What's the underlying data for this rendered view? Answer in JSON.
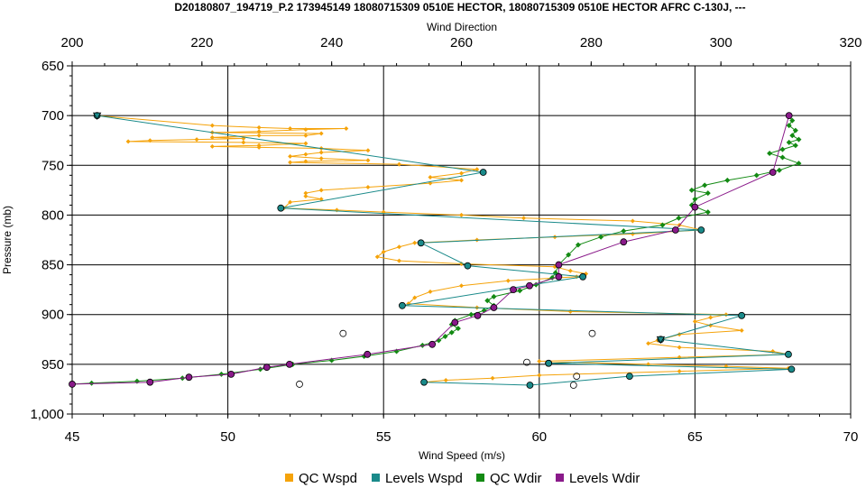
{
  "chart_data": {
    "type": "line",
    "title": "D20180807_194719_P.2 173945149 18080715309 0510E HECTOR, 18080715309 0510E HECTOR AFRC C-130J, ---",
    "xlabel_bottom": "Wind Speed (m/s)",
    "xlabel_top": "Wind Direction",
    "ylabel": "Pressure (mb)",
    "x_bottom_range": [
      45,
      70
    ],
    "x_top_range": [
      200,
      320
    ],
    "y_range": [
      650,
      1000
    ],
    "y_inverted": true,
    "x_bottom_ticks": [
      "45",
      "50",
      "55",
      "60",
      "65",
      "70"
    ],
    "x_top_ticks": [
      "200",
      "220",
      "240",
      "260",
      "280",
      "300",
      "320"
    ],
    "y_ticks": [
      "650",
      "700",
      "750",
      "800",
      "850",
      "900",
      "950",
      "1,000"
    ],
    "grid": true,
    "legend_position": "bottom",
    "colors": {
      "qc_wspd": "#f5a30a",
      "levels_wspd": "#1a8a8a",
      "qc_wdir": "#138a13",
      "levels_wdir": "#8a1a8a"
    },
    "series": [
      {
        "name": "QC Wspd",
        "axis": "speed",
        "points": [
          [
            45.8,
            700
          ],
          [
            49.5,
            710
          ],
          [
            51.0,
            712
          ],
          [
            52.0,
            713
          ],
          [
            53.8,
            713
          ],
          [
            52.5,
            714
          ],
          [
            51.0,
            716
          ],
          [
            49.5,
            717
          ],
          [
            53.0,
            718
          ],
          [
            52.5,
            720
          ],
          [
            51.0,
            720
          ],
          [
            49.5,
            722
          ],
          [
            50.5,
            723
          ],
          [
            49.0,
            724
          ],
          [
            47.5,
            725
          ],
          [
            46.8,
            726
          ],
          [
            50.5,
            727
          ],
          [
            52.5,
            728
          ],
          [
            51.0,
            730
          ],
          [
            49.5,
            731
          ],
          [
            51.0,
            732
          ],
          [
            53.0,
            733
          ],
          [
            54.5,
            735
          ],
          [
            53.0,
            737
          ],
          [
            52.5,
            739
          ],
          [
            52.0,
            741
          ],
          [
            53.0,
            743
          ],
          [
            54.5,
            745
          ],
          [
            52.5,
            746
          ],
          [
            52.0,
            747
          ],
          [
            55.5,
            749
          ],
          [
            58.0,
            754
          ],
          [
            57.5,
            758
          ],
          [
            56.5,
            762
          ],
          [
            57.5,
            765
          ],
          [
            56.5,
            768
          ],
          [
            54.5,
            772
          ],
          [
            53.0,
            775
          ],
          [
            52.5,
            778
          ],
          [
            52.5,
            781
          ],
          [
            53.0,
            784
          ],
          [
            52.0,
            787
          ],
          [
            51.8,
            793
          ],
          [
            53.5,
            795
          ],
          [
            55.0,
            797
          ],
          [
            57.5,
            800
          ],
          [
            59.5,
            803
          ],
          [
            63.0,
            806
          ],
          [
            64.5,
            810
          ],
          [
            65.2,
            815
          ],
          [
            63.0,
            819
          ],
          [
            60.5,
            822
          ],
          [
            58.0,
            825
          ],
          [
            56.0,
            828
          ],
          [
            55.5,
            832
          ],
          [
            55.0,
            837
          ],
          [
            54.8,
            842
          ],
          [
            55.5,
            846
          ],
          [
            57.5,
            849
          ],
          [
            60.5,
            852
          ],
          [
            61.0,
            856
          ],
          [
            61.5,
            859
          ],
          [
            61.2,
            862
          ],
          [
            59.0,
            866
          ],
          [
            57.5,
            871
          ],
          [
            56.5,
            877
          ],
          [
            56.0,
            883
          ],
          [
            55.8,
            889
          ],
          [
            58.0,
            893
          ],
          [
            61.0,
            897
          ],
          [
            66.0,
            900
          ],
          [
            65.5,
            903
          ],
          [
            65.0,
            907
          ],
          [
            65.5,
            911
          ],
          [
            66.5,
            916
          ],
          [
            64.5,
            920
          ],
          [
            63.8,
            926
          ],
          [
            63.5,
            929
          ],
          [
            64.5,
            933
          ],
          [
            67.5,
            937
          ],
          [
            68.0,
            940
          ],
          [
            64.5,
            943
          ],
          [
            60.0,
            947
          ],
          [
            63.5,
            950
          ],
          [
            66.0,
            952
          ],
          [
            68.0,
            954
          ],
          [
            64.5,
            957
          ],
          [
            60.0,
            961
          ],
          [
            58.5,
            964
          ],
          [
            57.0,
            966
          ],
          [
            56.3,
            968
          ]
        ]
      },
      {
        "name": "Levels Wspd",
        "axis": "speed",
        "points": [
          [
            45.8,
            700
          ],
          [
            58.2,
            757
          ],
          [
            51.7,
            793
          ],
          [
            65.2,
            815
          ],
          [
            56.2,
            828
          ],
          [
            57.7,
            851
          ],
          [
            61.4,
            862
          ],
          [
            55.6,
            891
          ],
          [
            66.5,
            901
          ],
          [
            63.9,
            925
          ],
          [
            68.0,
            940
          ],
          [
            60.3,
            949
          ],
          [
            68.1,
            955
          ],
          [
            62.9,
            962
          ],
          [
            59.7,
            971
          ],
          [
            56.3,
            968
          ]
        ]
      },
      {
        "name": "QC Wdir",
        "axis": "direction",
        "points": [
          [
            310.5,
            700
          ],
          [
            311.0,
            705
          ],
          [
            310.5,
            710
          ],
          [
            311.5,
            715
          ],
          [
            311.0,
            720
          ],
          [
            312.0,
            724
          ],
          [
            310.5,
            727
          ],
          [
            311.5,
            730
          ],
          [
            309.5,
            734
          ],
          [
            307.5,
            738
          ],
          [
            309.5,
            742
          ],
          [
            312.0,
            748
          ],
          [
            309.0,
            755
          ],
          [
            305.5,
            760
          ],
          [
            301.0,
            765
          ],
          [
            297.5,
            770
          ],
          [
            295.5,
            775
          ],
          [
            298.0,
            778
          ],
          [
            296.0,
            784
          ],
          [
            295.5,
            790
          ],
          [
            298.0,
            797
          ],
          [
            293.5,
            803
          ],
          [
            291.0,
            810
          ],
          [
            285.0,
            816
          ],
          [
            281.5,
            822
          ],
          [
            278.0,
            830
          ],
          [
            276.5,
            840
          ],
          [
            275.0,
            850
          ],
          [
            274.5,
            858
          ],
          [
            274.0,
            863
          ],
          [
            271.5,
            870
          ],
          [
            269.0,
            876
          ],
          [
            265.0,
            882
          ],
          [
            264.0,
            886
          ],
          [
            265.0,
            891
          ],
          [
            263.5,
            896
          ],
          [
            261.5,
            900
          ],
          [
            259.0,
            906
          ],
          [
            258.5,
            910
          ],
          [
            259.5,
            914
          ],
          [
            258.5,
            918
          ],
          [
            257.5,
            922
          ],
          [
            256.5,
            926
          ],
          [
            254.0,
            931
          ],
          [
            250.0,
            937
          ],
          [
            245.0,
            942
          ],
          [
            240.0,
            946
          ],
          [
            234.0,
            950
          ],
          [
            229.0,
            955
          ],
          [
            223.0,
            960
          ],
          [
            217.0,
            964
          ],
          [
            210.0,
            967
          ],
          [
            203.0,
            969
          ],
          [
            200.0,
            970
          ]
        ]
      },
      {
        "name": "Levels Wdir",
        "axis": "direction",
        "points": [
          [
            310.5,
            700
          ],
          [
            308.0,
            757
          ],
          [
            296.0,
            792
          ],
          [
            293.0,
            815
          ],
          [
            285.0,
            827
          ],
          [
            275.0,
            850
          ],
          [
            275.0,
            862
          ],
          [
            270.5,
            871
          ],
          [
            268.0,
            875
          ],
          [
            265.0,
            893
          ],
          [
            262.5,
            901
          ],
          [
            259.0,
            908
          ],
          [
            255.5,
            930
          ],
          [
            245.5,
            940
          ],
          [
            233.5,
            950
          ],
          [
            230.0,
            953
          ],
          [
            224.5,
            960
          ],
          [
            218.0,
            963
          ],
          [
            212.0,
            968
          ],
          [
            200.0,
            970
          ]
        ]
      },
      {
        "name": "",
        "axis": "speed",
        "points": [
          [
            53.7,
            919
          ],
          [
            52.3,
            970
          ],
          [
            61.7,
            919
          ],
          [
            61.2,
            962
          ],
          [
            61.1,
            971
          ],
          [
            60.3,
            949
          ],
          [
            59.6,
            948
          ]
        ]
      }
    ]
  }
}
